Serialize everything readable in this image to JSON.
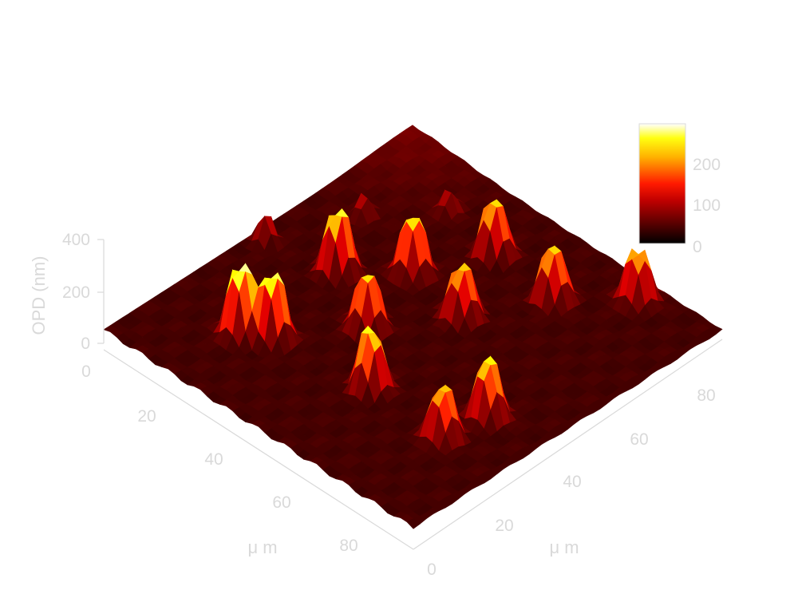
{
  "chart_data": {
    "type": "surface",
    "zlabel": "OPD (nm)",
    "xlabel": "μ m",
    "ylabel": "μ m",
    "colormap": "hot",
    "x_ticks": [
      "0",
      "20",
      "40",
      "60",
      "80"
    ],
    "y_ticks": [
      "0",
      "20",
      "40",
      "60",
      "80"
    ],
    "z_ticks": [
      "0",
      "200",
      "400"
    ],
    "colorbar_ticks": [
      "0",
      "100",
      "200"
    ],
    "xlim": [
      0,
      95
    ],
    "ylim": [
      0,
      95
    ],
    "zlim": [
      0,
      400
    ],
    "colorbar_range": [
      0,
      290
    ],
    "peaks": [
      {
        "x": 22,
        "y": 20,
        "height": 290
      },
      {
        "x": 28,
        "y": 24,
        "height": 270
      },
      {
        "x": 55,
        "y": 27,
        "height": 250
      },
      {
        "x": 78,
        "y": 26,
        "height": 210
      },
      {
        "x": 80,
        "y": 38,
        "height": 240
      },
      {
        "x": 40,
        "y": 41,
        "height": 230
      },
      {
        "x": 22,
        "y": 50,
        "height": 260
      },
      {
        "x": 52,
        "y": 58,
        "height": 220
      },
      {
        "x": 34,
        "y": 61,
        "height": 240
      },
      {
        "x": 42,
        "y": 78,
        "height": 230
      },
      {
        "x": 62,
        "y": 76,
        "height": 220
      },
      {
        "x": 75,
        "y": 89,
        "height": 210
      },
      {
        "x": 4,
        "y": 46,
        "height": 120
      },
      {
        "x": 13,
        "y": 67,
        "height": 90
      },
      {
        "x": 25,
        "y": 81,
        "height": 100
      }
    ]
  }
}
